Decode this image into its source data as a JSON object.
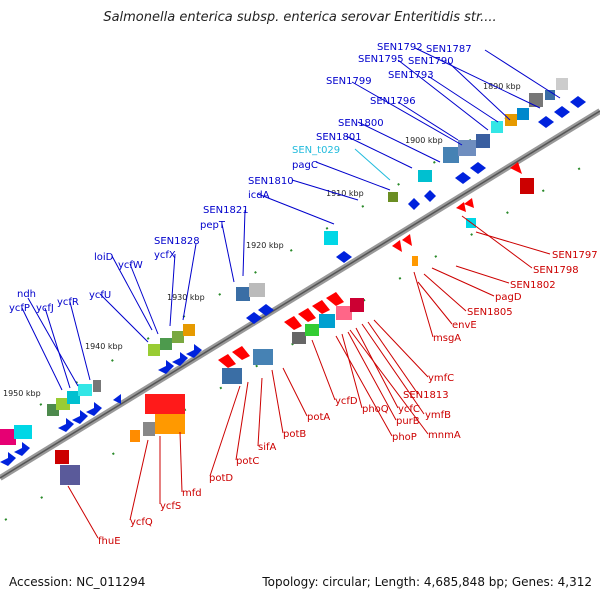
{
  "title": "Salmonella enterica subsp. enterica serovar Enteritidis str....",
  "footer": {
    "accession": "Accession: NC_011294",
    "topology": "Topology: circular; Length: 4,685,848 bp; Genes: 4,312"
  },
  "kbp_ticks": [
    "1890 kbp",
    "1900 kbp",
    "1910 kbp",
    "1920 kbp",
    "1930 kbp",
    "1940 kbp",
    "1950 kbp"
  ],
  "upper_labels": [
    "SEN1792",
    "SEN1787",
    "SEN1795",
    "SEN1790",
    "SEN1793",
    "SEN1799",
    "SEN1796",
    "SEN1800",
    "SEN1801",
    "SEN_t029",
    "pagC",
    "SEN1810",
    "icdA",
    "SEN1821",
    "pepT",
    "SEN1828",
    "ycfX",
    "loiD",
    "ycfW",
    "ycfU",
    "ndh",
    "ycfP",
    "ycfJ",
    "ycfR"
  ],
  "lower_labels": [
    "SEN1797",
    "SEN1798",
    "SEN1802",
    "pagD",
    "SEN1805",
    "envE",
    "msgA",
    "ymfC",
    "SEN1813",
    "ymfB",
    "ycfC",
    "mnmA",
    "phoQ",
    "purB",
    "phoP",
    "ycfD",
    "potA",
    "potB",
    "sifA",
    "potC",
    "potD",
    "mfd",
    "ycfS",
    "ycfQ",
    "fhuE"
  ],
  "colors": {
    "upper_label": "#0000cc",
    "trna_label": "#22bbdd",
    "lower_label": "#cc0000",
    "backbone": "#888888"
  }
}
